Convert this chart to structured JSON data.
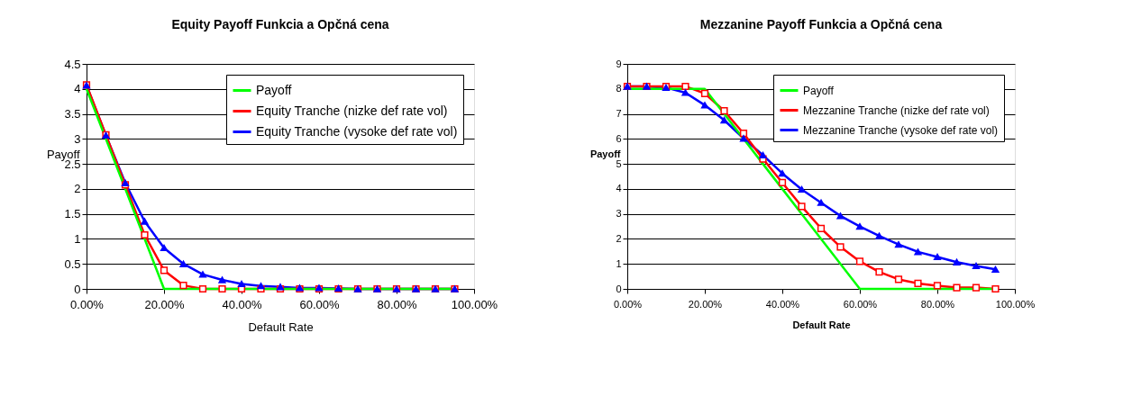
{
  "chart_data": [
    {
      "type": "line",
      "title": "Equity Payoff Funkcia a Opčná cena",
      "xlabel": "Default Rate",
      "ylabel": "Payoff",
      "x": [
        0,
        0.05,
        0.1,
        0.15,
        0.2,
        0.25,
        0.3,
        0.35,
        0.4,
        0.45,
        0.5,
        0.55,
        0.6,
        0.65,
        0.7,
        0.75,
        0.8,
        0.85,
        0.9,
        0.95
      ],
      "xlim": [
        0,
        1
      ],
      "xticks": [
        {
          "value": 0,
          "label": "0.00%"
        },
        {
          "value": 0.2,
          "label": "20.00%"
        },
        {
          "value": 0.4,
          "label": "40.00%"
        },
        {
          "value": 0.6,
          "label": "60.00%"
        },
        {
          "value": 0.8,
          "label": "80.00%"
        },
        {
          "value": 1,
          "label": "100.00%"
        }
      ],
      "ylim": [
        0,
        4.5
      ],
      "yticks": [
        0,
        0.5,
        1,
        1.5,
        2,
        2.5,
        3,
        3.5,
        4,
        4.5
      ],
      "grid": "y",
      "legend": "top right",
      "series": [
        {
          "name": "Payoff",
          "color": "#00ff00",
          "marker": "none",
          "values": [
            4,
            3,
            2,
            1,
            0,
            0,
            0,
            0,
            0,
            0,
            0,
            0,
            0,
            0,
            0,
            0,
            0,
            0,
            0,
            0
          ]
        },
        {
          "name": "Equity Tranche (nizke def rate vol)",
          "color": "#ff0000",
          "marker": "square",
          "values": [
            4.08,
            3.08,
            2.08,
            1.08,
            0.37,
            0.07,
            0,
            0,
            0,
            0,
            0,
            0,
            0,
            0,
            0,
            0,
            0,
            0,
            0,
            0
          ]
        },
        {
          "name": "Equity Tranche (vysoke def rate vol)",
          "color": "#0000ff",
          "marker": "triangle",
          "values": [
            4.07,
            3.07,
            2.12,
            1.35,
            0.82,
            0.5,
            0.29,
            0.18,
            0.1,
            0.06,
            0.04,
            0.02,
            0.02,
            0.01,
            0,
            0,
            0,
            0,
            0,
            0
          ]
        }
      ]
    },
    {
      "type": "line",
      "title": "Mezzanine Payoff Funkcia a Opčná cena",
      "xlabel": "Default Rate",
      "ylabel": "Payoff",
      "x": [
        0,
        0.05,
        0.1,
        0.15,
        0.2,
        0.25,
        0.3,
        0.35,
        0.4,
        0.45,
        0.5,
        0.55,
        0.6,
        0.65,
        0.7,
        0.75,
        0.8,
        0.85,
        0.9,
        0.95
      ],
      "xlim": [
        0,
        1
      ],
      "xticks": [
        {
          "value": 0,
          "label": "0.00%"
        },
        {
          "value": 0.2,
          "label": "20.00%"
        },
        {
          "value": 0.4,
          "label": "40.00%"
        },
        {
          "value": 0.6,
          "label": "60.00%"
        },
        {
          "value": 0.8,
          "label": "80.00%"
        },
        {
          "value": 1,
          "label": "100.00%"
        }
      ],
      "ylim": [
        0,
        9
      ],
      "yticks": [
        0,
        1,
        2,
        3,
        4,
        5,
        6,
        7,
        8,
        9
      ],
      "grid": "y",
      "legend": "top right",
      "series": [
        {
          "name": "Payoff",
          "color": "#00ff00",
          "marker": "none",
          "values": [
            8,
            8,
            8,
            8,
            8,
            7,
            6,
            5,
            4,
            3,
            2,
            1,
            0,
            0,
            0,
            0,
            0,
            0,
            0,
            0
          ]
        },
        {
          "name": "Mezzanine Tranche (nizke def rate vol)",
          "color": "#ff0000",
          "marker": "square",
          "values": [
            8.1,
            8.1,
            8.1,
            8.1,
            7.82,
            7.12,
            6.22,
            5.2,
            4.25,
            3.3,
            2.42,
            1.68,
            1.1,
            0.68,
            0.38,
            0.22,
            0.13,
            0.05,
            0.05,
            0
          ]
        },
        {
          "name": "Mezzanine Tranche (vysoke def rate vol)",
          "color": "#0000ff",
          "marker": "triangle",
          "values": [
            8.1,
            8.1,
            8.05,
            7.85,
            7.35,
            6.75,
            6.02,
            5.35,
            4.62,
            3.98,
            3.45,
            2.92,
            2.5,
            2.12,
            1.78,
            1.48,
            1.28,
            1.07,
            0.92,
            0.78
          ]
        }
      ]
    }
  ]
}
